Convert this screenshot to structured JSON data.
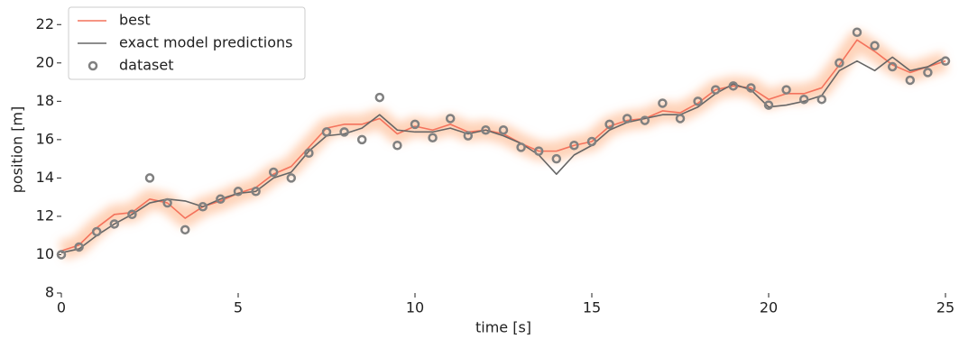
{
  "chart_data": {
    "type": "line",
    "xlabel": "time [s]",
    "ylabel": "position [m]",
    "x": [
      0,
      0.5,
      1,
      1.5,
      2,
      2.5,
      3,
      3.5,
      4,
      4.5,
      5,
      5.5,
      6,
      6.5,
      7,
      7.5,
      8,
      8.5,
      9,
      9.5,
      10,
      10.5,
      11,
      11.5,
      12,
      12.5,
      13,
      13.5,
      14,
      14.5,
      15,
      15.5,
      16,
      16.5,
      17,
      17.5,
      18,
      18.5,
      19,
      19.5,
      20,
      20.5,
      21,
      21.5,
      22,
      22.5,
      23,
      23.5,
      24,
      24.5,
      25
    ],
    "series": [
      {
        "name": "best",
        "color": "#f4725c",
        "mode": "line",
        "values": [
          10.2,
          10.5,
          11.4,
          12.1,
          12.2,
          12.9,
          12.7,
          11.9,
          12.5,
          12.8,
          13.2,
          13.5,
          14.2,
          14.6,
          15.6,
          16.6,
          16.8,
          16.8,
          17.1,
          16.3,
          16.7,
          16.5,
          16.8,
          16.4,
          16.5,
          16.3,
          15.8,
          15.4,
          15.4,
          15.7,
          15.9,
          16.7,
          17.0,
          17.1,
          17.5,
          17.4,
          17.9,
          18.6,
          18.8,
          18.7,
          18.1,
          18.4,
          18.4,
          18.7,
          19.9,
          21.2,
          20.6,
          19.9,
          19.5,
          19.8,
          20.1
        ]
      },
      {
        "name": "exact model predictions",
        "color": "#666666",
        "mode": "line",
        "values": [
          10.1,
          10.3,
          11.0,
          11.6,
          12.1,
          12.7,
          12.9,
          12.8,
          12.5,
          12.9,
          13.2,
          13.3,
          14.0,
          14.3,
          15.4,
          16.2,
          16.3,
          16.6,
          17.3,
          16.5,
          16.4,
          16.4,
          16.6,
          16.3,
          16.5,
          16.2,
          15.8,
          15.2,
          14.2,
          15.2,
          15.7,
          16.5,
          16.9,
          17.1,
          17.3,
          17.3,
          17.7,
          18.4,
          18.9,
          18.6,
          17.7,
          17.8,
          18.0,
          18.3,
          19.6,
          20.1,
          19.6,
          20.3,
          19.6,
          19.8,
          20.3
        ]
      },
      {
        "name": "dataset",
        "color": "#808080",
        "mode": "markers",
        "values": [
          10.0,
          10.4,
          11.2,
          11.6,
          12.1,
          14.0,
          12.7,
          11.3,
          12.5,
          12.9,
          13.3,
          13.3,
          14.3,
          14.0,
          15.3,
          16.4,
          16.4,
          16.0,
          18.2,
          15.7,
          16.8,
          16.1,
          17.1,
          16.2,
          16.5,
          16.5,
          15.6,
          15.4,
          15.0,
          15.7,
          15.9,
          16.8,
          17.1,
          17.0,
          17.9,
          17.1,
          18.0,
          18.6,
          18.8,
          18.7,
          17.8,
          18.6,
          18.1,
          18.1,
          20.0,
          21.6,
          20.9,
          19.8,
          19.1,
          19.5,
          20.1
        ]
      }
    ],
    "xlim": [
      0,
      25
    ],
    "ylim": [
      8,
      23
    ],
    "xticks": [
      0,
      5,
      10,
      15,
      20,
      25
    ],
    "yticks": [
      8,
      10,
      12,
      14,
      16,
      18,
      20,
      22
    ],
    "legend": "upper left",
    "uncertainty_color": "#fdae80"
  }
}
